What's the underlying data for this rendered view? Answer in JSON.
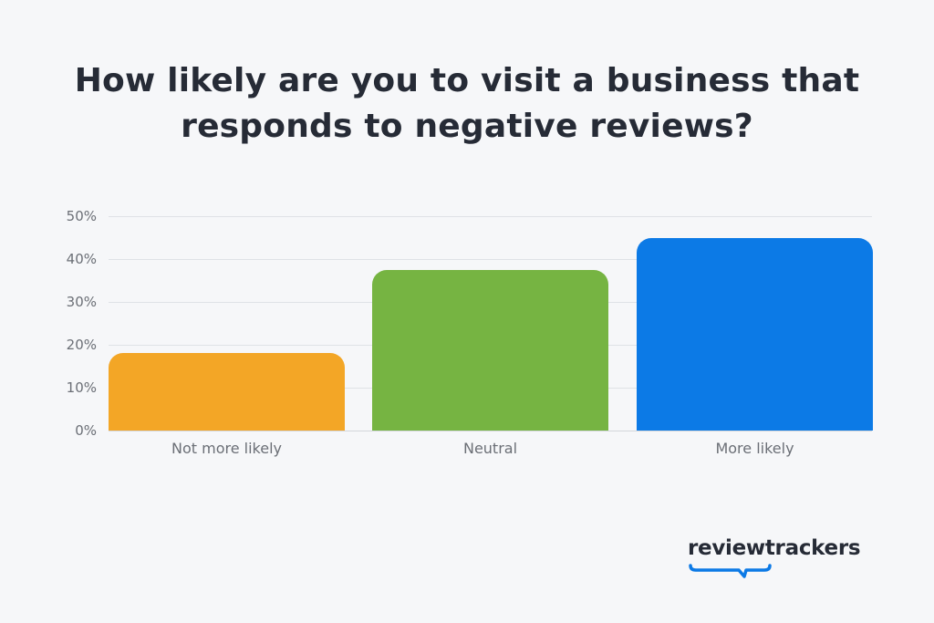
{
  "title": {
    "line1": "How likely are you to visit a business that",
    "line2": "responds to negative reviews?"
  },
  "chart_data": {
    "type": "bar",
    "title": "How likely are you to visit a business that responds to negative reviews?",
    "categories": [
      "Not more likely",
      "Neutral",
      "More likely"
    ],
    "values": [
      18,
      37.5,
      45
    ],
    "colors": [
      "#f3a626",
      "#76b442",
      "#0c7ae6"
    ],
    "xlabel": "",
    "ylabel": "",
    "ylim": [
      0,
      50
    ],
    "yticks": [
      "0%",
      "10%",
      "20%",
      "30%",
      "40%",
      "50%"
    ],
    "grid": true,
    "legend": "none"
  },
  "axis": {
    "y0": "0%",
    "y10": "10%",
    "y20": "20%",
    "y30": "30%",
    "y40": "40%",
    "y50": "50%"
  },
  "logo": {
    "text": "reviewtrackers",
    "accent_color": "#0c7ae6"
  }
}
